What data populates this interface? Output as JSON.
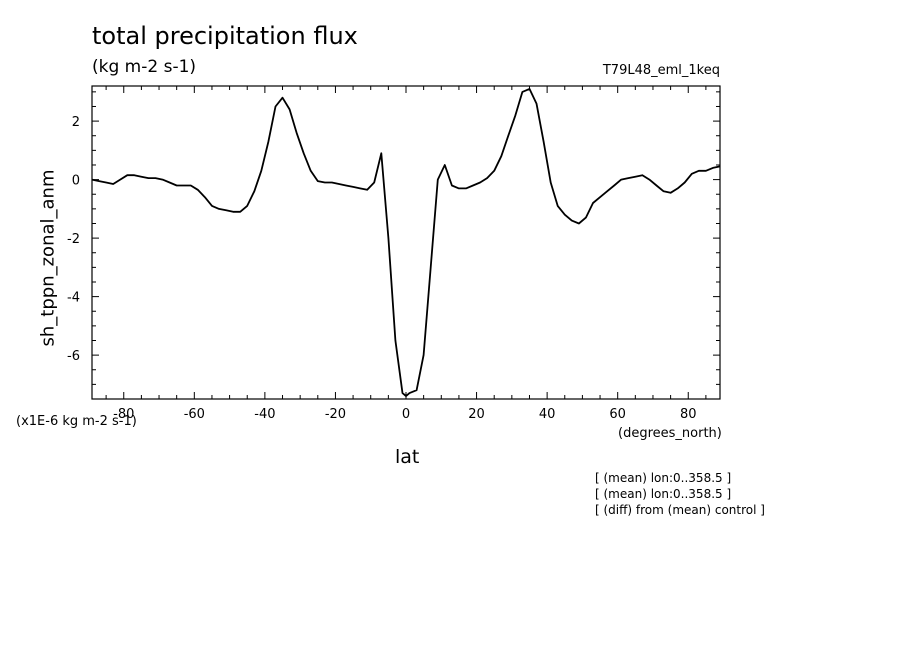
{
  "header": {
    "title": "total precipitation flux",
    "units": "(kg m-2 s-1)",
    "run_id": "T79L48_eml_1keq"
  },
  "footer": {
    "scale_note": "(x1E-6 kg m-2 s-1)",
    "x_units": "(degrees_north)",
    "notes": [
      "[ (mean) lon:0..358.5 ]",
      "[ (mean) lon:0..358.5 ]",
      "[ (diff) from (mean) control ]"
    ]
  },
  "chart_data": {
    "type": "line",
    "title": "total precipitation flux",
    "subtitle": "(kg m-2 s-1)",
    "xlabel": "lat",
    "ylabel": "sh_tppn_zonal_anm",
    "xlim": [
      -89,
      89
    ],
    "ylim": [
      -7.5,
      3.2
    ],
    "x_ticks": [
      -80,
      -60,
      -40,
      -20,
      0,
      20,
      40,
      60,
      80
    ],
    "x_tick_labels": [
      "-80",
      "-60",
      "-40",
      "-20",
      "0",
      "20",
      "40",
      "60",
      "80"
    ],
    "y_ticks": [
      -6,
      -4,
      -2,
      0,
      2
    ],
    "y_tick_labels": [
      "-6",
      "-4",
      "-2",
      "0",
      "2"
    ],
    "grid": false,
    "series": [
      {
        "color": "#000000",
        "x": [
          -89,
          -87,
          -85,
          -83,
          -81,
          -79,
          -77,
          -75,
          -73,
          -71,
          -69,
          -67,
          -65,
          -63,
          -61,
          -59,
          -57,
          -55,
          -53,
          -51,
          -49,
          -47,
          -45,
          -43,
          -41,
          -39,
          -37,
          -35,
          -33,
          -31,
          -29,
          -27,
          -25,
          -23,
          -21,
          -19,
          -17,
          -15,
          -13,
          -11,
          -9,
          -7,
          -5,
          -3,
          -1,
          0,
          1,
          3,
          5,
          7,
          9,
          11,
          13,
          15,
          17,
          19,
          21,
          23,
          25,
          27,
          29,
          31,
          33,
          35,
          37,
          39,
          41,
          43,
          45,
          47,
          49,
          51,
          53,
          55,
          57,
          59,
          61,
          63,
          65,
          67,
          69,
          71,
          73,
          75,
          77,
          79,
          81,
          83,
          85,
          87,
          89
        ],
        "values": [
          0.0,
          -0.05,
          -0.1,
          -0.15,
          0.0,
          0.15,
          0.15,
          0.1,
          0.05,
          0.05,
          0.0,
          -0.1,
          -0.2,
          -0.2,
          -0.2,
          -0.35,
          -0.6,
          -0.9,
          -1.0,
          -1.05,
          -1.1,
          -1.1,
          -0.9,
          -0.4,
          0.3,
          1.3,
          2.5,
          2.8,
          2.4,
          1.6,
          0.9,
          0.3,
          -0.05,
          -0.1,
          -0.1,
          -0.15,
          -0.2,
          -0.25,
          -0.3,
          -0.35,
          -0.1,
          0.9,
          -2.0,
          -5.5,
          -7.3,
          -7.4,
          -7.3,
          -7.2,
          -6.0,
          -3.0,
          0.0,
          0.5,
          -0.2,
          -0.3,
          -0.3,
          -0.2,
          -0.1,
          0.05,
          0.3,
          0.8,
          1.5,
          2.2,
          3.0,
          3.1,
          2.6,
          1.3,
          -0.1,
          -0.9,
          -1.2,
          -1.4,
          -1.5,
          -1.3,
          -0.8,
          -0.6,
          -0.4,
          -0.2,
          0.0,
          0.05,
          0.1,
          0.15,
          0.0,
          -0.2,
          -0.4,
          -0.45,
          -0.3,
          -0.1,
          0.2,
          0.3,
          0.3,
          0.4,
          0.45
        ]
      }
    ]
  }
}
